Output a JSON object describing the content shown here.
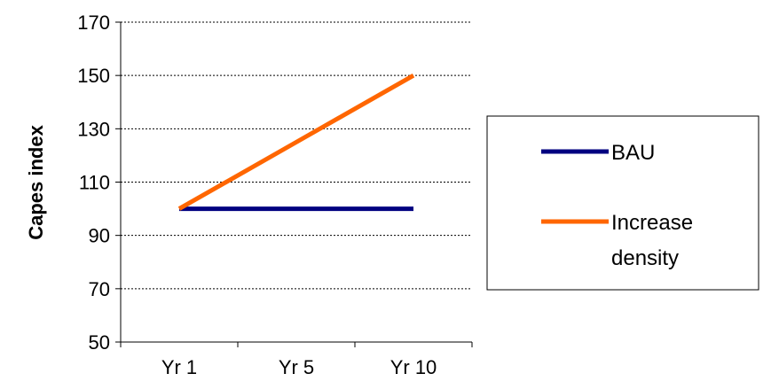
{
  "chart_data": {
    "type": "line",
    "title": "",
    "xlabel": "",
    "ylabel": "Capes index",
    "categories": [
      "Yr 1",
      "Yr 5",
      "Yr 10"
    ],
    "ylim": [
      50,
      170
    ],
    "yticks": [
      50,
      70,
      90,
      110,
      130,
      150,
      170
    ],
    "grid": "horizontal dotted",
    "legend_position": "right",
    "series": [
      {
        "name": "BAU",
        "values": [
          100,
          100,
          100
        ],
        "color": "#000080"
      },
      {
        "name": "Increase density",
        "legend_lines": [
          "Increase",
          "density"
        ],
        "values": [
          100,
          125,
          150
        ],
        "color": "#FF6600"
      }
    ]
  }
}
